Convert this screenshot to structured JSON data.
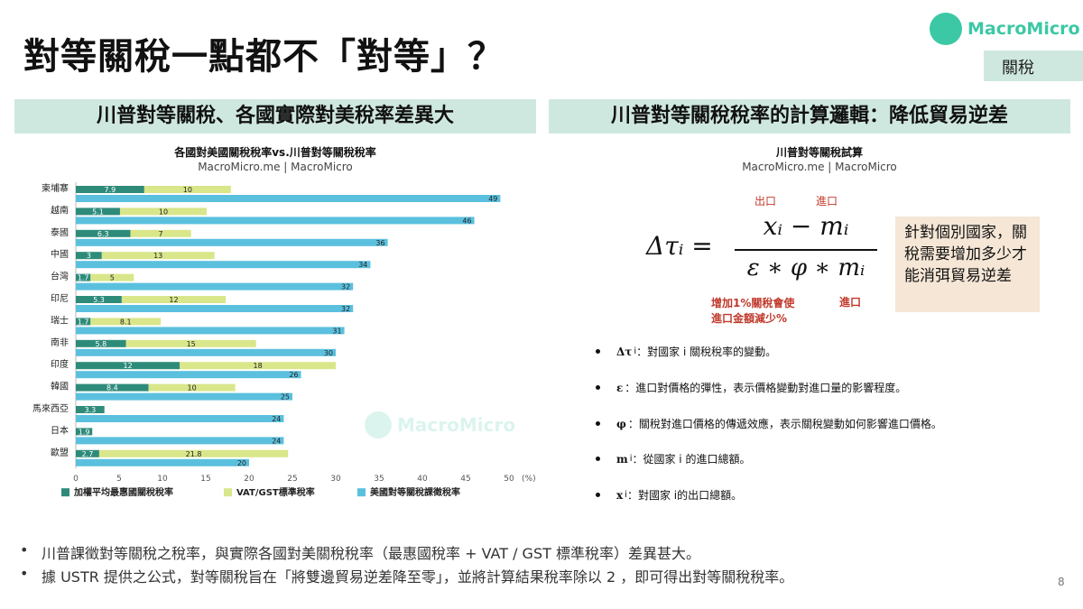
{
  "title": "對等關稅一點都不「對等」？",
  "logo": {
    "text": "MacroMicro"
  },
  "tag": "關稅",
  "left_panel": {
    "heading": "川普對等關稅、各國實際對美稅率差異大",
    "chart_title": "各國對美國關稅稅率vs.川普對等關稅稅率",
    "chart_source": "MacroMicro.me | MacroMicro",
    "watermark": "MacroMicro"
  },
  "right_panel": {
    "heading": "川普對等關稅稅率的計算邏輯：降低貿易逆差",
    "sub_title": "川普對等關稅試算",
    "sub_source": "MacroMicro.me | MacroMicro",
    "formula": {
      "label_export": "出口",
      "label_import_top": "進口",
      "label_elasticity": "增加1%關稅會使\n進口金額減少%",
      "label_import_bottom": "進口",
      "lhs": "Δτᵢ =",
      "numerator": "xᵢ − mᵢ",
      "denominator": "ε ∗ φ ∗ mᵢ"
    },
    "note": "針對個別國家，關稅需要增加多少才能消弭貿易逆差",
    "definitions": [
      {
        "symbol": "Δτ",
        "sub": "i",
        "text": "：對國家 i 關稅稅率的變動。"
      },
      {
        "symbol": "ε",
        "sub": "",
        "text": "：進口對價格的彈性，表示價格變動對進口量的影響程度。"
      },
      {
        "symbol": "φ",
        "sub": "",
        "text": "：關稅對進口價格的傳遞效應，表示關稅變動如何影響進口價格。"
      },
      {
        "symbol": "m",
        "sub": "i",
        "text": "：從國家 i 的進口總額。"
      },
      {
        "symbol": "x",
        "sub": "i",
        "text": "：對國家 i的出口總額。"
      }
    ]
  },
  "bullets": [
    "川普課徵對等關稅之稅率，與實際各國對美關稅稅率（最惠國稅率 + VAT / GST 標準稅率）差異甚大。",
    "據 USTR 提供之公式，對等關稅旨在「將雙邊貿易逆差降至零」，並將計算結果稅率除以 2 ，即可得出對等關稅稅率。"
  ],
  "page_number": "8",
  "chart_data": {
    "type": "bar",
    "orientation": "horizontal",
    "categories": [
      "柬埔寨",
      "越南",
      "泰國",
      "中國",
      "台灣",
      "印尼",
      "瑞士",
      "南非",
      "印度",
      "韓國",
      "馬來西亞",
      "日本",
      "歐盟"
    ],
    "series": [
      {
        "name": "加權平均最惠國關稅稅率",
        "color": "#2e8b7a",
        "stack": "a",
        "values": [
          7.9,
          5.1,
          6.3,
          3,
          1.7,
          5.3,
          1.7,
          5.8,
          12,
          8.4,
          3.3,
          1.9,
          2.7
        ]
      },
      {
        "name": "VAT/GST標準稅率",
        "color": "#d9e68a",
        "stack": "a",
        "values": [
          10,
          10,
          7,
          13,
          5,
          12,
          8.1,
          15,
          18,
          10,
          0,
          0,
          21.8
        ]
      },
      {
        "name": "美國對等關稅課徵稅率",
        "color": "#5bc0de",
        "stack": "b",
        "values": [
          49,
          46,
          36,
          34,
          32,
          32,
          31,
          30,
          26,
          25,
          24,
          24,
          20
        ]
      }
    ],
    "xlim": [
      0,
      50
    ],
    "xticks": [
      0,
      5,
      10,
      15,
      20,
      25,
      30,
      35,
      40,
      45,
      50
    ],
    "x_unit": "(%)",
    "grid": false,
    "legend": "bottom"
  }
}
